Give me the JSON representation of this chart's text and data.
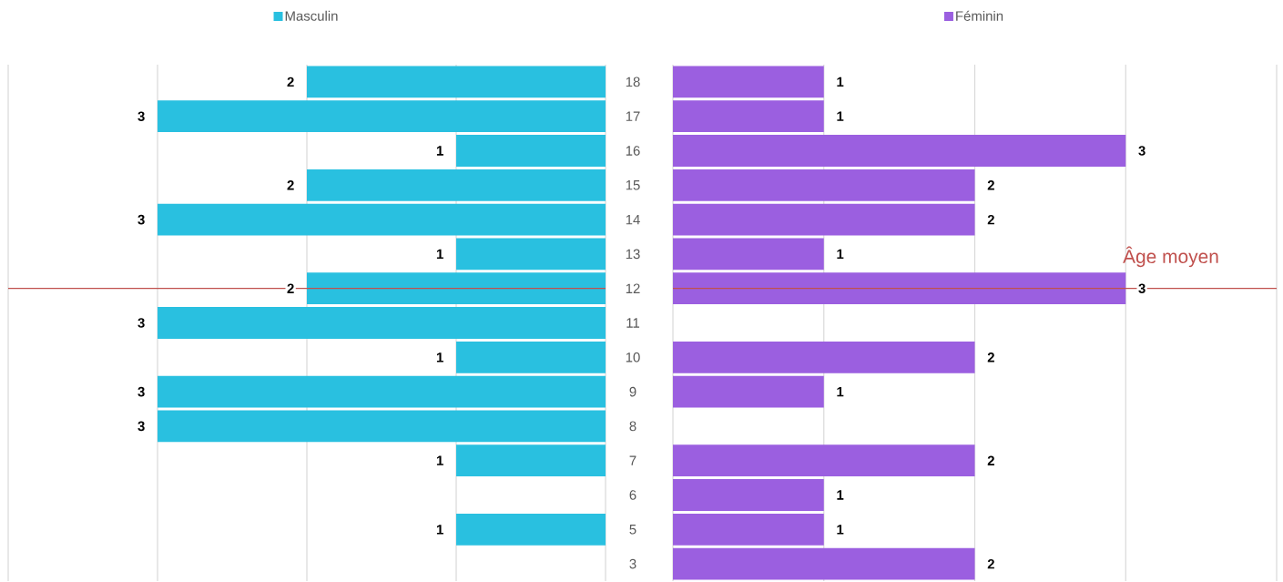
{
  "chart_data": [
    {
      "type": "bar",
      "orientation": "horizontal",
      "categories": [
        "18",
        "17",
        "16",
        "15",
        "14",
        "13",
        "12",
        "11",
        "10",
        "9",
        "8",
        "7",
        "6",
        "5",
        "3"
      ],
      "series": [
        {
          "name": "Masculin",
          "color": "#29c0e0",
          "values": [
            2,
            3,
            1,
            2,
            3,
            1,
            2,
            3,
            1,
            3,
            3,
            1,
            null,
            1,
            null
          ]
        }
      ],
      "xlim": [
        4,
        0
      ],
      "xticks": [
        {
          "value": 0,
          "label": null
        },
        {
          "value": 1,
          "label": null
        },
        {
          "value": 2,
          "label": null
        },
        {
          "value": 3,
          "label": null
        },
        {
          "value": 4,
          "label": null
        }
      ],
      "grid": "x",
      "tick_labels": "y",
      "data_labels": true,
      "legend": "top",
      "ref_lines": [
        {
          "axis": "y",
          "value": "12",
          "color": "#c0504d"
        }
      ]
    },
    {
      "type": "bar",
      "orientation": "horizontal",
      "categories": [
        "18",
        "17",
        "16",
        "15",
        "14",
        "13",
        "12",
        "11",
        "10",
        "9",
        "8",
        "7",
        "6",
        "5",
        "3"
      ],
      "series": [
        {
          "name": "Féminin",
          "color": "#9b5fe0",
          "values": [
            1,
            1,
            3,
            2,
            2,
            1,
            3,
            null,
            2,
            1,
            null,
            2,
            1,
            1,
            2
          ]
        }
      ],
      "xlim": [
        0,
        4
      ],
      "xticks": [
        {
          "value": 0,
          "label": null
        },
        {
          "value": 1,
          "label": null
        },
        {
          "value": 2,
          "label": null
        },
        {
          "value": 3,
          "label": null
        },
        {
          "value": 4,
          "label": null
        }
      ],
      "grid": "x",
      "tick_labels": false,
      "data_labels": true,
      "legend": "top",
      "ref_lines": [
        {
          "axis": "y",
          "value": "12",
          "label": "Âge moyen",
          "color": "#c0504d"
        }
      ]
    }
  ]
}
